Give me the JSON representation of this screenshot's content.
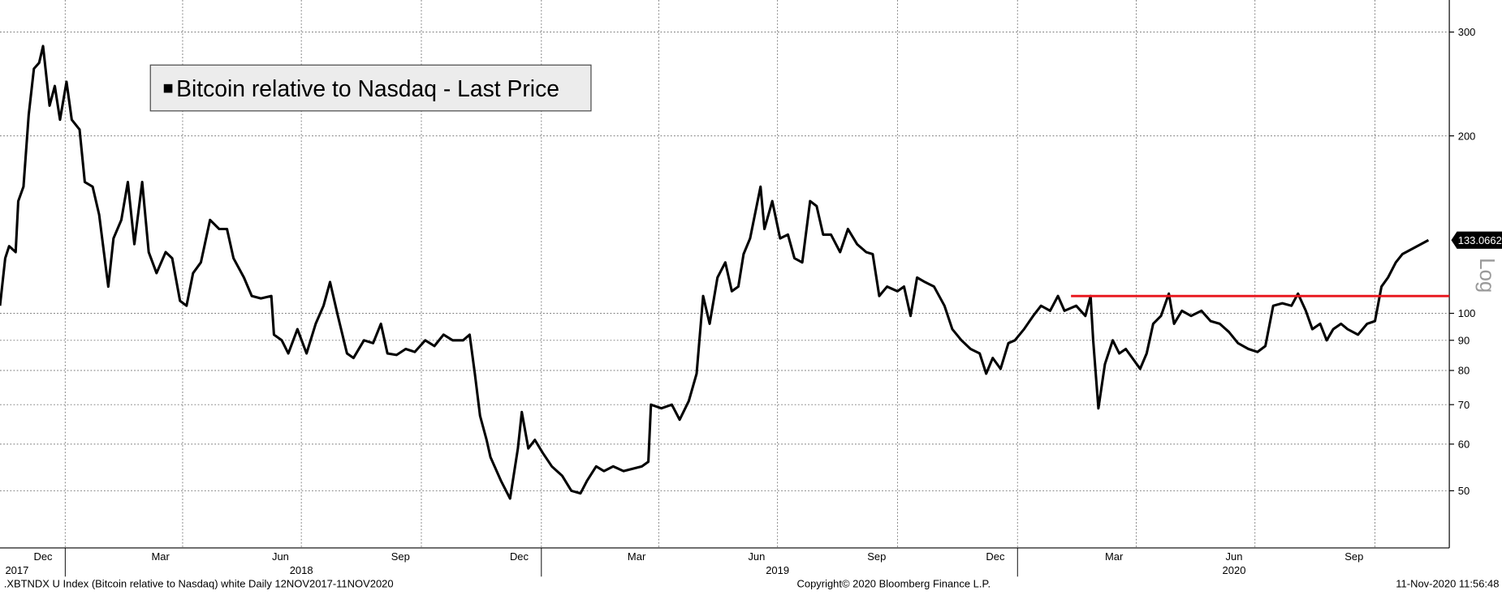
{
  "chart_data": {
    "type": "line",
    "legend_title": "Bitcoin relative to Nasdaq - Last Price",
    "y_scale_label": "Log",
    "footer_left": ".XBTNDX U Index (Bitcoin relative to Nasdaq) white  Daily 12NOV2017-11NOV2020",
    "footer_center": "Copyright© 2020 Bloomberg Finance L.P.",
    "footer_right": "11-Nov-2020 11:56:48",
    "log_scale": true,
    "grid": true,
    "xlim": [
      "2017-11-12",
      "2020-11-27"
    ],
    "ylim": [
      40,
      340
    ],
    "yticks": [
      50,
      60,
      70,
      80,
      90,
      100,
      200,
      300
    ],
    "xticks": [
      {
        "value": "2017-12-15",
        "label": "Dec"
      },
      {
        "value": "2018-03-15",
        "label": "Mar"
      },
      {
        "value": "2018-06-15",
        "label": "Jun"
      },
      {
        "value": "2018-09-15",
        "label": "Sep"
      },
      {
        "value": "2018-12-15",
        "label": "Dec"
      },
      {
        "value": "2019-03-15",
        "label": "Mar"
      },
      {
        "value": "2019-06-15",
        "label": "Jun"
      },
      {
        "value": "2019-09-15",
        "label": "Sep"
      },
      {
        "value": "2019-12-15",
        "label": "Dec"
      },
      {
        "value": "2020-03-15",
        "label": "Mar"
      },
      {
        "value": "2020-06-15",
        "label": "Jun"
      },
      {
        "value": "2020-09-15",
        "label": "Sep"
      }
    ],
    "year_ticks": [
      {
        "value": "2017-11-25",
        "label": "2017"
      },
      {
        "value": "2018-07-01",
        "label": "2018"
      },
      {
        "value": "2019-07-01",
        "label": "2019"
      },
      {
        "value": "2020-06-15",
        "label": "2020"
      }
    ],
    "year_separators": [
      "2018-01-01",
      "2019-01-01",
      "2020-01-01"
    ],
    "xgrid": [
      "2018-01-01",
      "2018-04-01",
      "2018-07-01",
      "2018-10-01",
      "2019-01-01",
      "2019-04-01",
      "2019-07-01",
      "2019-10-01",
      "2020-01-01",
      "2020-04-01",
      "2020-07-01",
      "2020-10-01"
    ],
    "reference_line": {
      "value": 107,
      "start": "2020-02-11",
      "color": "#e8141b"
    },
    "x": [
      "2017-11-12",
      "2017-11-16",
      "2017-11-19",
      "2017-11-24",
      "2017-11-26",
      "2017-11-30",
      "2017-12-04",
      "2017-12-08",
      "2017-12-12",
      "2017-12-15",
      "2017-12-20",
      "2017-12-24",
      "2017-12-28",
      "2018-01-02",
      "2018-01-06",
      "2018-01-12",
      "2018-01-16",
      "2018-01-22",
      "2018-01-27",
      "2018-02-03",
      "2018-02-07",
      "2018-02-13",
      "2018-02-18",
      "2018-02-23",
      "2018-03-01",
      "2018-03-06",
      "2018-03-12",
      "2018-03-19",
      "2018-03-24",
      "2018-03-30",
      "2018-04-04",
      "2018-04-09",
      "2018-04-15",
      "2018-04-22",
      "2018-04-29",
      "2018-05-05",
      "2018-05-10",
      "2018-05-18",
      "2018-05-24",
      "2018-05-31",
      "2018-06-08",
      "2018-06-10",
      "2018-06-16",
      "2018-06-21",
      "2018-06-28",
      "2018-07-05",
      "2018-07-12",
      "2018-07-18",
      "2018-07-23",
      "2018-07-29",
      "2018-08-05",
      "2018-08-10",
      "2018-08-18",
      "2018-08-25",
      "2018-08-31",
      "2018-09-05",
      "2018-09-12",
      "2018-09-19",
      "2018-09-26",
      "2018-10-04",
      "2018-10-11",
      "2018-10-18",
      "2018-10-25",
      "2018-11-02",
      "2018-11-07",
      "2018-11-11",
      "2018-11-15",
      "2018-11-20",
      "2018-11-23",
      "2018-12-01",
      "2018-12-08",
      "2018-12-14",
      "2018-12-17",
      "2018-12-22",
      "2018-12-27",
      "2019-01-02",
      "2019-01-09",
      "2019-01-17",
      "2019-01-24",
      "2019-01-31",
      "2019-02-05",
      "2019-02-12",
      "2019-02-18",
      "2019-02-25",
      "2019-03-05",
      "2019-03-12",
      "2019-03-19",
      "2019-03-24",
      "2019-03-26",
      "2019-04-03",
      "2019-04-11",
      "2019-04-17",
      "2019-04-24",
      "2019-04-30",
      "2019-05-05",
      "2019-05-10",
      "2019-05-16",
      "2019-05-22",
      "2019-05-27",
      "2019-06-01",
      "2019-06-05",
      "2019-06-10",
      "2019-06-18",
      "2019-06-21",
      "2019-06-27",
      "2019-07-03",
      "2019-07-09",
      "2019-07-14",
      "2019-07-20",
      "2019-07-26",
      "2019-07-31",
      "2019-08-05",
      "2019-08-11",
      "2019-08-18",
      "2019-08-24",
      "2019-08-31",
      "2019-09-07",
      "2019-09-12",
      "2019-09-17",
      "2019-09-23",
      "2019-10-01",
      "2019-10-06",
      "2019-10-11",
      "2019-10-16",
      "2019-10-22",
      "2019-10-29",
      "2019-11-06",
      "2019-11-12",
      "2019-11-19",
      "2019-11-26",
      "2019-12-03",
      "2019-12-08",
      "2019-12-13",
      "2019-12-19",
      "2019-12-25",
      "2019-12-30",
      "2020-01-06",
      "2020-01-13",
      "2020-01-19",
      "2020-01-26",
      "2020-02-01",
      "2020-02-06",
      "2020-02-15",
      "2020-02-22",
      "2020-02-26",
      "2020-02-28",
      "2020-03-03",
      "2020-03-08",
      "2020-03-14",
      "2020-03-19",
      "2020-03-24",
      "2020-03-29",
      "2020-04-04",
      "2020-04-09",
      "2020-04-14",
      "2020-04-20",
      "2020-04-26",
      "2020-04-30",
      "2020-05-06",
      "2020-05-13",
      "2020-05-21",
      "2020-05-28",
      "2020-06-04",
      "2020-06-11",
      "2020-06-18",
      "2020-06-26",
      "2020-07-03",
      "2020-07-09",
      "2020-07-15",
      "2020-07-22",
      "2020-07-29",
      "2020-08-03",
      "2020-08-09",
      "2020-08-14",
      "2020-08-20",
      "2020-08-25",
      "2020-08-30",
      "2020-09-05",
      "2020-09-10",
      "2020-09-18",
      "2020-09-25",
      "2020-10-01",
      "2020-10-06",
      "2020-10-11",
      "2020-10-17",
      "2020-10-22",
      "2020-11-11"
    ],
    "series": [
      {
        "name": "Bitcoin relative to Nasdaq - Last Price",
        "color": "#000000",
        "values": [
          103,
          124,
          130,
          127,
          155,
          164,
          217,
          260,
          266,
          284,
          225,
          243,
          213,
          247,
          213,
          205,
          167,
          164,
          147,
          111,
          134,
          144,
          167,
          131,
          167,
          127,
          117,
          127,
          124,
          105,
          103,
          117,
          122,
          144,
          139,
          139,
          124,
          115,
          107,
          106,
          107,
          92,
          90,
          85.5,
          94,
          85.5,
          96,
          103,
          113,
          99,
          85.5,
          84,
          90,
          89,
          96,
          85.5,
          85,
          87,
          86,
          90,
          88,
          92,
          90,
          90,
          92,
          79,
          67,
          61,
          57,
          52,
          48.5,
          59,
          68,
          59,
          61,
          58,
          55,
          53,
          50,
          49.5,
          52,
          55,
          54,
          55,
          54,
          54.5,
          55,
          56,
          70,
          69,
          70,
          66,
          71,
          79,
          107,
          96,
          115,
          122,
          109,
          111,
          126,
          134,
          164,
          139,
          155,
          134,
          136,
          124,
          122,
          155,
          152,
          136,
          136,
          127,
          139,
          131,
          127,
          126,
          107,
          111,
          109,
          111,
          99,
          115,
          113,
          111,
          103,
          94,
          90,
          87,
          85.5,
          79,
          84,
          80.5,
          89,
          90,
          94,
          99,
          103,
          101,
          107,
          101,
          103,
          99,
          107,
          90,
          69,
          82,
          90,
          85.5,
          87,
          84,
          80.5,
          85.5,
          96,
          99,
          108,
          96,
          101,
          99,
          101,
          97,
          96,
          93,
          89,
          87,
          86,
          88,
          103,
          104,
          103,
          108,
          101,
          94,
          96,
          90,
          94,
          96,
          94,
          92,
          96,
          97,
          111,
          115,
          122,
          126,
          133.0662
        ]
      }
    ]
  }
}
